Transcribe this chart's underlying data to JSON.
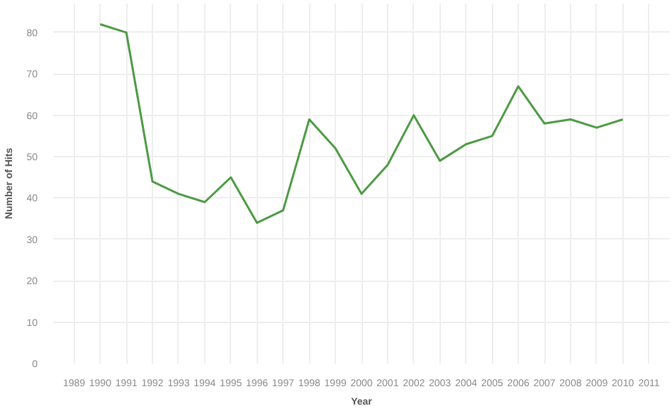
{
  "chart_data": {
    "type": "line",
    "xlabel": "Year",
    "ylabel": "Number of Hits",
    "x": [
      1990,
      1991,
      1992,
      1993,
      1994,
      1995,
      1996,
      1997,
      1998,
      1999,
      2000,
      2001,
      2002,
      2003,
      2004,
      2005,
      2006,
      2007,
      2008,
      2009,
      2010
    ],
    "series": [
      {
        "color": "#4e9a45",
        "values": [
          82,
          80,
          44,
          41,
          39,
          45,
          34,
          37,
          59,
          52,
          41,
          48,
          60,
          49,
          53,
          55,
          67,
          58,
          59,
          57,
          59
        ]
      }
    ],
    "xlim": [
      1988.2,
      2011.8
    ],
    "xticks": [
      1989,
      1990,
      1991,
      1992,
      1993,
      1994,
      1995,
      1996,
      1997,
      1998,
      1999,
      2000,
      2001,
      2002,
      2003,
      2004,
      2005,
      2006,
      2007,
      2008,
      2009,
      2010,
      2011
    ],
    "ylim": [
      0,
      87
    ],
    "yticks": [
      0,
      10,
      20,
      30,
      40,
      50,
      60,
      70,
      80
    ],
    "grid": true,
    "marker": "none",
    "line_style": "solid"
  }
}
